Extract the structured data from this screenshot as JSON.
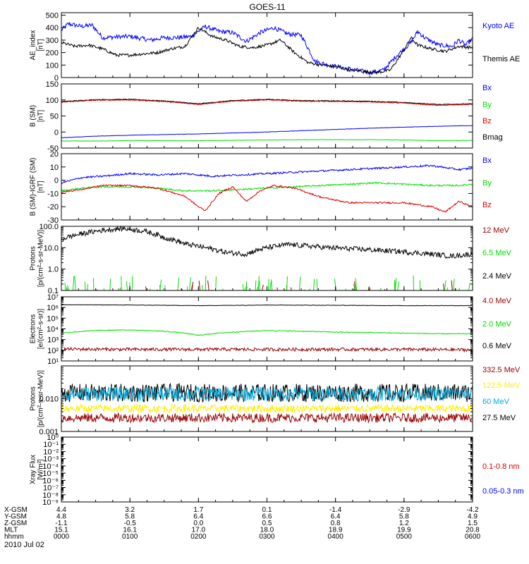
{
  "title": "GOES-11",
  "date_label": "2010 Jul 02",
  "colors": {
    "black": "#000000",
    "blue": "#0000ff",
    "green": "#00dd00",
    "red": "#dd0000",
    "darkred": "#990000",
    "yellow": "#ffee00",
    "cyan": "#00aadd"
  },
  "chart_data": [
    {
      "type": "line",
      "ylabel": "AE_index\n[nT]",
      "yscale": "linear",
      "ylim": [
        0,
        520
      ],
      "yticks": [
        0,
        100,
        200,
        300,
        400,
        500
      ],
      "legend": [
        {
          "label": "Kyoto AE",
          "color": "#0000ff"
        },
        {
          "label": "Themis AE",
          "color": "#000000"
        }
      ],
      "series": [
        {
          "name": "Kyoto AE",
          "color": "#0000ff",
          "noise": 18,
          "x": [
            0,
            0.1,
            0.3,
            0.45,
            0.6,
            1.0,
            1.3,
            1.5,
            1.7,
            1.9,
            2.1,
            2.3,
            2.5,
            2.7,
            2.9,
            3.1,
            3.3,
            3.5,
            3.7,
            3.9,
            4.1,
            4.3,
            4.5,
            4.7,
            4.8,
            4.9,
            5.1,
            5.2,
            5.3,
            5.5,
            5.7,
            5.8,
            5.9,
            6.0
          ],
          "y": [
            380,
            430,
            410,
            420,
            320,
            330,
            300,
            320,
            320,
            330,
            410,
            370,
            360,
            290,
            360,
            400,
            350,
            340,
            130,
            100,
            80,
            60,
            40,
            60,
            120,
            180,
            280,
            370,
            320,
            260,
            250,
            300,
            260,
            310
          ]
        },
        {
          "name": "Themis AE",
          "color": "#000000",
          "noise": 12,
          "x": [
            0,
            0.2,
            0.4,
            0.6,
            0.8,
            1.0,
            1.2,
            1.4,
            1.6,
            1.8,
            2.0,
            2.2,
            2.4,
            2.6,
            2.8,
            3.0,
            3.2,
            3.4,
            3.6,
            3.8,
            4.0,
            4.2,
            4.4,
            4.6,
            4.8,
            4.9,
            5.0,
            5.1,
            5.2,
            5.4,
            5.6,
            5.8,
            6.0
          ],
          "y": [
            280,
            250,
            260,
            230,
            180,
            180,
            190,
            200,
            230,
            250,
            400,
            330,
            300,
            250,
            240,
            260,
            300,
            200,
            120,
            100,
            90,
            60,
            50,
            40,
            60,
            140,
            220,
            320,
            260,
            230,
            210,
            250,
            240
          ]
        }
      ]
    },
    {
      "type": "line",
      "ylabel": "B (SM)\n[nT]",
      "yscale": "linear",
      "ylim": [
        -50,
        150
      ],
      "yticks": [
        -50,
        0,
        50,
        100,
        150
      ],
      "legend": [
        {
          "label": "Bx",
          "color": "#0000ff"
        },
        {
          "label": "By",
          "color": "#00dd00"
        },
        {
          "label": "Bz",
          "color": "#dd0000"
        },
        {
          "label": "Bmag",
          "color": "#000000"
        }
      ],
      "series": [
        {
          "name": "Bmag",
          "color": "#000000",
          "noise": 1.2,
          "x": [
            0,
            0.5,
            1.0,
            1.5,
            2.0,
            2.5,
            3.0,
            3.5,
            4.0,
            4.5,
            5.0,
            5.5,
            6.0
          ],
          "y": [
            95,
            101,
            102,
            97,
            88,
            98,
            102,
            98,
            97,
            96,
            92,
            86,
            88
          ]
        },
        {
          "name": "Bz",
          "color": "#dd0000",
          "noise": 1.2,
          "x": [
            0,
            0.5,
            1.0,
            1.5,
            2.0,
            2.5,
            3.0,
            3.5,
            4.0,
            4.5,
            5.0,
            5.5,
            6.0
          ],
          "y": [
            93,
            99,
            100,
            95,
            86,
            96,
            100,
            96,
            95,
            94,
            90,
            83,
            86
          ]
        },
        {
          "name": "Bx",
          "color": "#0000ff",
          "noise": 0.6,
          "x": [
            0,
            0.5,
            1.0,
            1.5,
            2.0,
            2.5,
            3.0,
            3.5,
            4.0,
            4.5,
            5.0,
            5.5,
            6.0
          ],
          "y": [
            -18,
            -13,
            -10,
            -8,
            -6,
            -3,
            0,
            4,
            8,
            12,
            15,
            18,
            20
          ]
        },
        {
          "name": "By",
          "color": "#00dd00",
          "noise": 0.6,
          "x": [
            0,
            0.5,
            1.0,
            1.5,
            2.0,
            2.5,
            3.0,
            3.5,
            4.0,
            4.5,
            5.0,
            5.5,
            6.0
          ],
          "y": [
            -28,
            -28,
            -27,
            -27,
            -27,
            -26,
            -25,
            -24,
            -24,
            -24,
            -25,
            -27,
            -26
          ]
        }
      ]
    },
    {
      "type": "line",
      "ylabel": "B (SM)-IGRF (SM)\n[nT]",
      "yscale": "linear",
      "ylim": [
        -30,
        20
      ],
      "yticks": [
        -30,
        -20,
        -10,
        0,
        10,
        20
      ],
      "legend": [
        {
          "label": "Bx",
          "color": "#0000ff"
        },
        {
          "label": "By",
          "color": "#00dd00"
        },
        {
          "label": "Bz",
          "color": "#dd0000"
        }
      ],
      "series": [
        {
          "name": "Bx",
          "color": "#0000ff",
          "noise": 0.7,
          "x": [
            0,
            0.3,
            0.6,
            1.0,
            1.4,
            1.8,
            2.2,
            2.6,
            3.0,
            3.4,
            3.8,
            4.2,
            4.6,
            5.0,
            5.4,
            5.8,
            6.0
          ],
          "y": [
            -2,
            2,
            3,
            5,
            4,
            5,
            3,
            4,
            5,
            6,
            7,
            8,
            9,
            10,
            11,
            8,
            9
          ]
        },
        {
          "name": "By",
          "color": "#00dd00",
          "noise": 0.6,
          "x": [
            0,
            0.3,
            0.6,
            1.0,
            1.4,
            1.8,
            2.2,
            2.6,
            3.0,
            3.4,
            3.8,
            4.2,
            4.6,
            5.0,
            5.4,
            5.8,
            6.0
          ],
          "y": [
            -8,
            -6,
            -5,
            -5,
            -6,
            -8,
            -8,
            -7,
            -6,
            -5,
            -4,
            -3,
            -2,
            -3,
            -4,
            -4,
            -3
          ]
        },
        {
          "name": "Bz",
          "color": "#dd0000",
          "noise": 0.6,
          "x": [
            0,
            0.3,
            0.6,
            1.0,
            1.4,
            1.8,
            2.0,
            2.1,
            2.3,
            2.5,
            2.7,
            2.9,
            3.1,
            3.4,
            3.8,
            4.2,
            4.6,
            5.0,
            5.4,
            5.6,
            5.8,
            6.0
          ],
          "y": [
            -9,
            -7,
            -4,
            -4,
            -6,
            -12,
            -20,
            -23,
            -10,
            -5,
            -16,
            -8,
            -4,
            -6,
            -13,
            -17,
            -17,
            -17,
            -20,
            -24,
            -16,
            -20
          ]
        }
      ]
    },
    {
      "type": "line",
      "ylabel": "Protons\n[p/(cm²-s-sr-MeV)]",
      "yscale": "log",
      "ylim": [
        0.1,
        100
      ],
      "yticks": [
        0.1,
        1.0,
        10.0,
        100.0
      ],
      "ytick_labels": [
        "0.1",
        "1.0",
        "10.0",
        "100.0"
      ],
      "legend": [
        {
          "label": "12 MeV",
          "color": "#990000"
        },
        {
          "label": "6.5 MeV",
          "color": "#00dd00"
        },
        {
          "label": "2.4 MeV",
          "color": "#000000"
        }
      ],
      "series": [
        {
          "name": "2.4 MeV",
          "color": "#000000",
          "noise": 0.12,
          "log": true,
          "x": [
            0,
            0.3,
            0.6,
            0.9,
            1.2,
            1.5,
            1.8,
            2.1,
            2.4,
            2.7,
            3.0,
            3.3,
            3.6,
            3.9,
            4.2,
            4.5,
            4.8,
            5.1,
            5.4,
            5.7,
            6.0
          ],
          "y": [
            25,
            45,
            65,
            80,
            60,
            30,
            15,
            10,
            6,
            5,
            10,
            14,
            12,
            10,
            9,
            8,
            7,
            6,
            5,
            4,
            5
          ]
        },
        {
          "name": "6.5 MeV",
          "color": "#00dd00",
          "spikes": true,
          "count": 70,
          "max": 0.5
        },
        {
          "name": "12 MeV",
          "color": "#990000",
          "spikes": true,
          "count": 22,
          "max": 0.3
        }
      ]
    },
    {
      "type": "line",
      "ylabel": "Electrons\n[e/(cm²-s-sr)]",
      "yscale": "log",
      "ylim": [
        10,
        10000000
      ],
      "yticks": [
        10,
        100,
        1000,
        10000,
        100000,
        1000000,
        10000000
      ],
      "ytick_labels": [
        "10¹",
        "10²",
        "10³",
        "10⁴",
        "10⁵",
        "10⁶",
        "10⁷"
      ],
      "legend": [
        {
          "label": "4.0 MeV",
          "color": "#990000"
        },
        {
          "label": "2.0 MeV",
          "color": "#00dd00"
        },
        {
          "label": "0.6 MeV",
          "color": "#000000"
        }
      ],
      "series": [
        {
          "name": "0.6 MeV",
          "color": "#000000",
          "noise": 0.02,
          "log": true,
          "x": [
            0,
            1,
            2,
            3,
            4,
            5,
            6
          ],
          "y": [
            1800000,
            1700000,
            1500000,
            1700000,
            1600000,
            1500000,
            1500000
          ]
        },
        {
          "name": "2.0 MeV",
          "color": "#00dd00",
          "noise": 0.04,
          "log": true,
          "x": [
            0,
            0.5,
            1,
            1.5,
            2,
            2.5,
            3,
            3.5,
            4,
            4.5,
            5,
            5.5,
            6
          ],
          "y": [
            4000,
            7000,
            8000,
            6000,
            2500,
            5000,
            7000,
            6000,
            5000,
            4500,
            4000,
            3500,
            3500
          ]
        },
        {
          "name": "4.0 MeV",
          "color": "#990000",
          "noise": 0.15,
          "log": true,
          "x": [
            0,
            1,
            2,
            3,
            4,
            5,
            6
          ],
          "y": [
            130,
            120,
            120,
            120,
            120,
            120,
            110
          ]
        }
      ]
    },
    {
      "type": "line",
      "ylabel": "Protons\n[p/(cm²-s-sr-MeV)]",
      "yscale": "log",
      "ylim": [
        0.001,
        0.1
      ],
      "yticks": [
        0.001,
        0.01
      ],
      "ytick_labels": [
        "0.001",
        "0.010"
      ],
      "legend": [
        {
          "label": "332.5 MeV",
          "color": "#990000"
        },
        {
          "label": "122.5 MeV",
          "color": "#ffee00"
        },
        {
          "label": "60 MeV",
          "color": "#00aadd"
        },
        {
          "label": "27.5 MeV",
          "color": "#000000"
        }
      ],
      "series": [
        {
          "name": "27.5 MeV",
          "color": "#000000",
          "noise": 0.28,
          "log": true,
          "x": [
            0,
            6
          ],
          "y": [
            0.015,
            0.015
          ]
        },
        {
          "name": "60 MeV",
          "color": "#00aadd",
          "noise": 0.22,
          "log": true,
          "x": [
            0,
            6
          ],
          "y": [
            0.014,
            0.014
          ]
        },
        {
          "name": "122.5 MeV",
          "color": "#ffee00",
          "noise": 0.12,
          "log": true,
          "x": [
            0,
            6
          ],
          "y": [
            0.005,
            0.005
          ]
        },
        {
          "name": "332.5 MeV",
          "color": "#990000",
          "noise": 0.14,
          "log": true,
          "x": [
            0,
            6
          ],
          "y": [
            0.0026,
            0.0026
          ]
        }
      ]
    },
    {
      "type": "line",
      "ylabel": "Xray Flux\n[W/m²]",
      "yscale": "log",
      "ylim": [
        1e-09,
        1
      ],
      "yticks": [
        1e-09,
        1e-08,
        1e-07,
        1e-06,
        1e-05,
        0.0001,
        0.001,
        0.01,
        0.1,
        1
      ],
      "ytick_labels": [
        "10⁻⁹",
        "10⁻⁸",
        "10⁻⁷",
        "10⁻⁶",
        "10⁻⁵",
        "10⁻⁴",
        "10⁻³",
        "10⁻²",
        "10⁻¹",
        "10⁰"
      ],
      "legend": [
        {
          "label": "0.1-0.8 nm",
          "color": "#dd0000"
        },
        {
          "label": "0.05-0.3 nm",
          "color": "#0000ff"
        }
      ],
      "series": []
    }
  ],
  "xaxis": {
    "range": [
      0,
      6
    ],
    "ticks": [
      0,
      1,
      2,
      3,
      4,
      5,
      6
    ],
    "rows": [
      {
        "label": "X-GSM",
        "values": [
          "4.4",
          "3.2",
          "1.7",
          "0.1",
          "-1.4",
          "-2.9",
          "-4.2"
        ]
      },
      {
        "label": "Y-GSM",
        "values": [
          "4.8",
          "5.8",
          "6.4",
          "6.6",
          "6.4",
          "5.8",
          "4.9"
        ]
      },
      {
        "label": "Z-GSM",
        "values": [
          "-1.1",
          "-0.5",
          "0.0",
          "0.5",
          "0.8",
          "1.2",
          "1.5"
        ]
      },
      {
        "label": "MLT",
        "values": [
          "15.1",
          "16.1",
          "17.0",
          "18.0",
          "18.9",
          "19.9",
          "20.8"
        ]
      },
      {
        "label": "hhmm",
        "values": [
          "0000",
          "0100",
          "0200",
          "0300",
          "0400",
          "0500",
          "0600"
        ]
      }
    ]
  }
}
